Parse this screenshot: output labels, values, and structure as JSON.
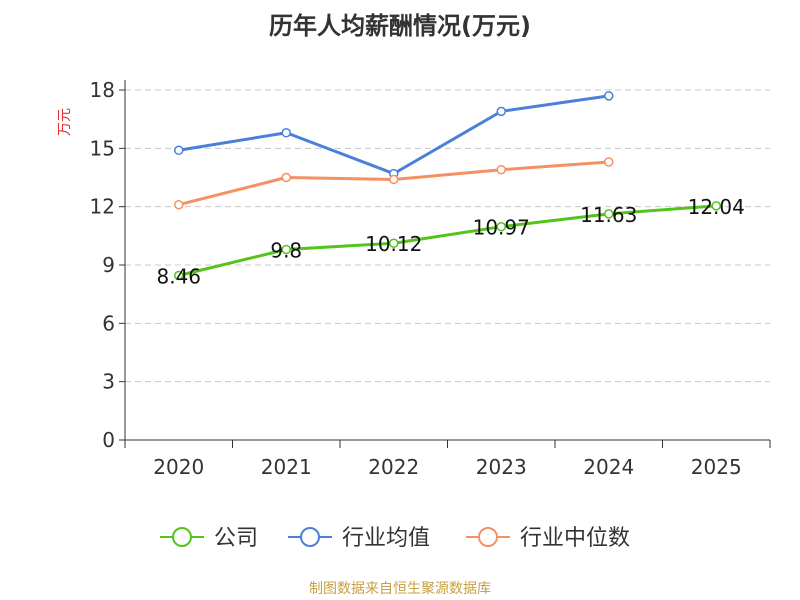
{
  "chart_data": {
    "type": "line",
    "title": "历年人均薪酬情况(万元)",
    "ylabel": "万元",
    "xlabel": "",
    "categories": [
      "2020",
      "2021",
      "2022",
      "2023",
      "2024",
      "2025"
    ],
    "ylim": [
      0,
      18
    ],
    "yticks": [
      0,
      3,
      6,
      9,
      12,
      15,
      18
    ],
    "grid": true,
    "legend_position": "bottom",
    "series": [
      {
        "name": "公司",
        "color": "#52c41a",
        "values": [
          8.46,
          9.8,
          10.12,
          10.97,
          11.63,
          12.04
        ],
        "labels": [
          "8.46",
          "9.8",
          "10.12",
          "10.97",
          "11.63",
          "12.04"
        ]
      },
      {
        "name": "行业均值",
        "color": "#4a7fdb",
        "values": [
          14.9,
          15.8,
          13.7,
          16.9,
          17.7,
          null
        ]
      },
      {
        "name": "行业中位数",
        "color": "#f59062",
        "values": [
          12.1,
          13.5,
          13.4,
          13.9,
          14.3,
          null
        ]
      }
    ]
  },
  "footer": {
    "source": "制图数据来自恒生聚源数据库"
  }
}
